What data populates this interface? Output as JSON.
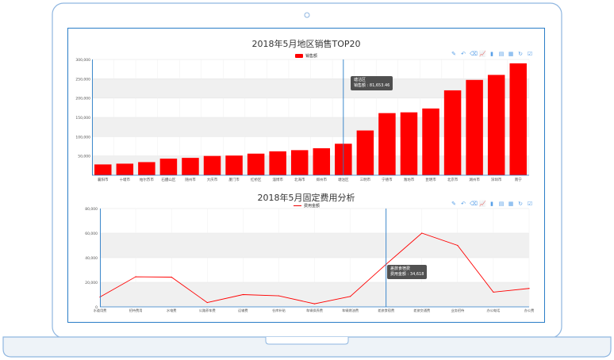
{
  "toolbox": {
    "icons": [
      "mark-icon",
      "mark-undo-icon",
      "mark-clear-icon",
      "line-switch-icon",
      "bar-switch-icon",
      "stack-icon",
      "tiled-icon",
      "restore-icon",
      "save-image-icon"
    ],
    "glyphs": [
      "✎",
      "↶",
      "⌫",
      "📈",
      "▮",
      "▤",
      "▦",
      "↻",
      "☑"
    ],
    "color": "#5aa0e8"
  },
  "chart_data": [
    {
      "type": "bar",
      "title": "2018年5月地区销售TOP20",
      "legend": [
        "销售额"
      ],
      "legend_position": "top-center",
      "categories": [
        "襄阳市",
        "十堰市",
        "帕尔苏市",
        "石醴山区",
        "随州市",
        "大庆市",
        "厦门市",
        "红桥区",
        "淄博市",
        "北海市",
        "郑州市",
        "塘沽区",
        "三明市",
        "宁德市",
        "潍坊市",
        "昆明市",
        "北京市",
        "湖州市",
        "深圳市",
        "南宁"
      ],
      "series": [
        {
          "name": "销售额",
          "color": "#ff0000",
          "values": [
            28000,
            30000,
            34000,
            43000,
            45000,
            50000,
            51000,
            56000,
            62000,
            65000,
            70000,
            81653.46,
            116000,
            161000,
            163000,
            173000,
            220000,
            247000,
            260000,
            290000
          ]
        }
      ],
      "yticks": [
        "300,000",
        "250,000",
        "200,000",
        "150,000",
        "100,000",
        "50,000"
      ],
      "ylim": [
        0,
        300000
      ],
      "grid": true,
      "tooltip": {
        "category": "塘沽区",
        "label": "销售额",
        "value": "81,653.46"
      }
    },
    {
      "type": "line",
      "title": "2018年5月固定费用分析",
      "legend": [
        "费用金额"
      ],
      "legend_position": "top-center",
      "categories": [
        "水道用费",
        "招待费用",
        "水电费",
        "公路养车费",
        "运输费",
        "仓库补贴",
        "车辆保养费",
        "车辆燃油费",
        "差旅食宿费",
        "差旅交通费",
        "业务招待",
        "办公电话",
        "办公费"
      ],
      "series": [
        {
          "name": "费用金额",
          "color": "#ff0000",
          "values": [
            8000,
            24500,
            24200,
            3500,
            10000,
            9000,
            2500,
            8500,
            34618,
            60000,
            50000,
            12000,
            15000
          ]
        }
      ],
      "yticks": [
        "80,000",
        "60,000",
        "40,000",
        "20,000",
        "0"
      ],
      "ylim": [
        0,
        80000
      ],
      "grid": true,
      "tooltip": {
        "category": "差旅食宿费",
        "label": "费用金额",
        "value": "34,618"
      }
    }
  ]
}
